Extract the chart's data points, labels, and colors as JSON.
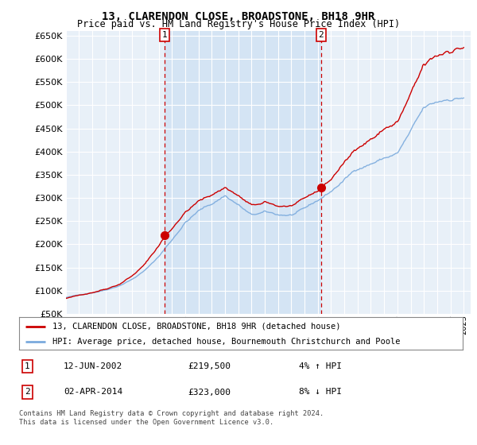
{
  "title": "13, CLARENDON CLOSE, BROADSTONE, BH18 9HR",
  "subtitle": "Price paid vs. HM Land Registry's House Price Index (HPI)",
  "ylim": [
    50000,
    660000
  ],
  "yticks": [
    50000,
    100000,
    150000,
    200000,
    250000,
    300000,
    350000,
    400000,
    450000,
    500000,
    550000,
    600000,
    650000
  ],
  "background_color": "#e8f0f8",
  "plot_bg": "#e8f0f8",
  "plot_bg_between": "#d4e4f4",
  "grid_color": "#ffffff",
  "sale_color": "#cc0000",
  "hpi_color": "#7aaadd",
  "sale_label": "13, CLARENDON CLOSE, BROADSTONE, BH18 9HR (detached house)",
  "hpi_label": "HPI: Average price, detached house, Bournemouth Christchurch and Poole",
  "annotation1_date": "12-JUN-2002",
  "annotation1_price": "£219,500",
  "annotation1_hpi": "4% ↑ HPI",
  "annotation2_date": "02-APR-2014",
  "annotation2_price": "£323,000",
  "annotation2_hpi": "8% ↓ HPI",
  "footer": "Contains HM Land Registry data © Crown copyright and database right 2024.\nThis data is licensed under the Open Government Licence v3.0.",
  "sale1_x": 2002.44,
  "sale1_y": 219500,
  "sale2_x": 2014.25,
  "sale2_y": 323000,
  "xmin": 1995.0,
  "xmax": 2025.5
}
